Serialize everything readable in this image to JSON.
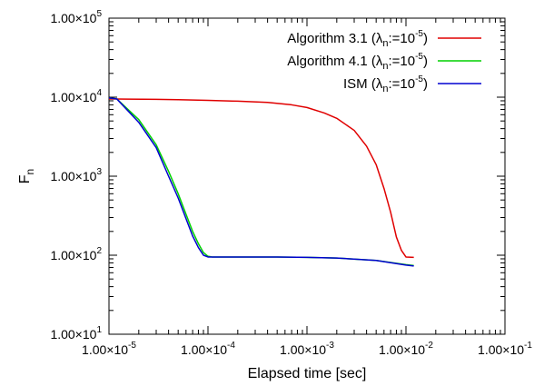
{
  "chart_data": {
    "type": "line",
    "title": "",
    "xlabel": "Elapsed time [sec]",
    "ylabel_main": "F",
    "ylabel_sub": "n",
    "xscale": "log",
    "yscale": "log",
    "xlim": [
      1e-05,
      0.1
    ],
    "ylim": [
      10,
      100000
    ],
    "grid": false,
    "legend_position": "top-right",
    "x_ticks": [
      {
        "value": 1e-05,
        "mantissa": "1.00×10",
        "exp": "-5"
      },
      {
        "value": 0.0001,
        "mantissa": "1.00×10",
        "exp": "-4"
      },
      {
        "value": 0.001,
        "mantissa": "1.00×10",
        "exp": "-3"
      },
      {
        "value": 0.01,
        "mantissa": "1.00×10",
        "exp": "-2"
      },
      {
        "value": 0.1,
        "mantissa": "1.00×10",
        "exp": "-1"
      }
    ],
    "y_ticks": [
      {
        "value": 10,
        "mantissa": "1.00×10",
        "exp": "1"
      },
      {
        "value": 100,
        "mantissa": "1.00×10",
        "exp": "2"
      },
      {
        "value": 1000,
        "mantissa": "1.00×10",
        "exp": "3"
      },
      {
        "value": 10000,
        "mantissa": "1.00×10",
        "exp": "4"
      },
      {
        "value": 100000,
        "mantissa": "1.00×10",
        "exp": "5"
      }
    ],
    "series": [
      {
        "name": "Algorithm 3.1",
        "legend_suffix": "n",
        "legend_eq": ":=10",
        "legend_exp": "-5",
        "color": "#e00000",
        "x": [
          1e-05,
          1.5e-05,
          3e-05,
          5e-05,
          0.0001,
          0.0002,
          0.0004,
          0.0007,
          0.001,
          0.0015,
          0.002,
          0.003,
          0.004,
          0.005,
          0.006,
          0.007,
          0.008,
          0.009,
          0.01,
          0.012
        ],
        "y": [
          9500,
          9450,
          9400,
          9300,
          9100,
          8900,
          8600,
          8000,
          7400,
          6300,
          5400,
          3800,
          2400,
          1400,
          700,
          350,
          170,
          115,
          95,
          94
        ]
      },
      {
        "name": "Algorithm 4.1",
        "legend_suffix": "n",
        "legend_eq": ":=10",
        "legend_exp": "-5",
        "color": "#00d000",
        "x": [
          1e-05,
          1.2e-05,
          2e-05,
          3e-05,
          4e-05,
          5e-05,
          6e-05,
          7e-05,
          8e-05,
          9e-05,
          0.0001,
          0.00011,
          0.0002,
          0.0005,
          0.001,
          0.002,
          0.005,
          0.01,
          0.012
        ],
        "y": [
          9800,
          9500,
          5200,
          2500,
          1150,
          600,
          330,
          200,
          140,
          108,
          97,
          95,
          95,
          95,
          94,
          92,
          86,
          76,
          74
        ]
      },
      {
        "name": "ISM",
        "legend_suffix": "n",
        "legend_eq": ":=10",
        "legend_exp": "-5",
        "color": "#0000d0",
        "x": [
          1e-05,
          1.2e-05,
          2e-05,
          3e-05,
          4e-05,
          5e-05,
          6e-05,
          7e-05,
          8e-05,
          9e-05,
          0.0001,
          0.00011,
          0.0002,
          0.0005,
          0.001,
          0.002,
          0.005,
          0.01,
          0.012
        ],
        "y": [
          9800,
          9500,
          4800,
          2300,
          1000,
          530,
          290,
          175,
          125,
          100,
          95,
          95,
          95,
          95,
          94,
          92,
          86,
          75,
          73
        ]
      }
    ]
  }
}
